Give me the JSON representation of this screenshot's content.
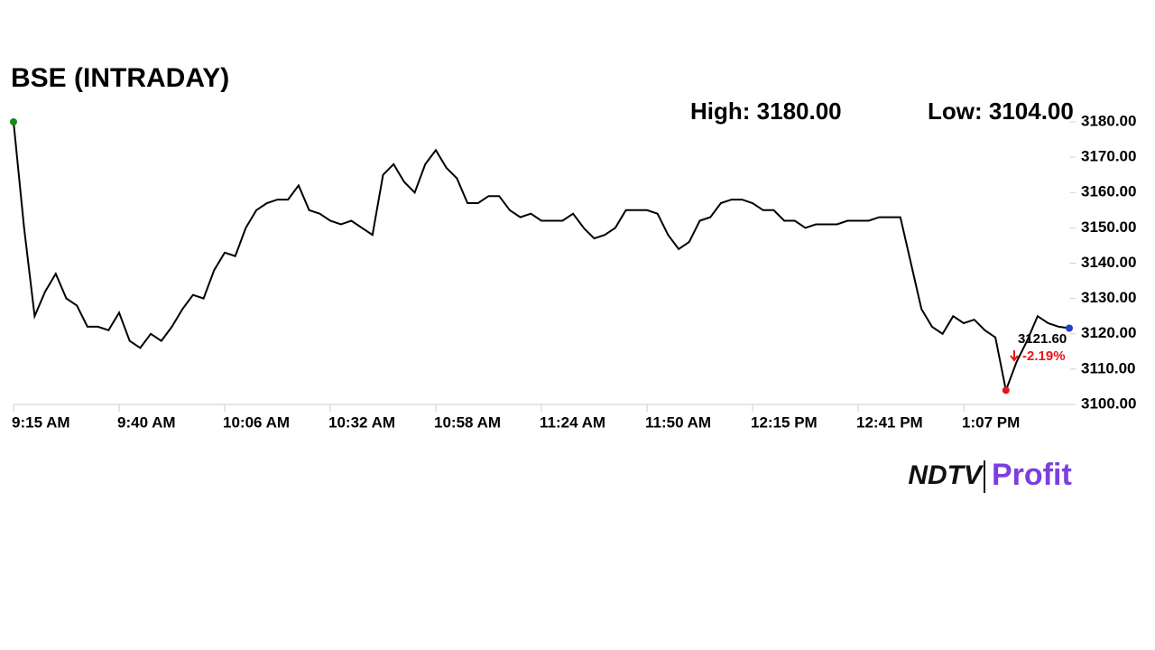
{
  "chart_data": {
    "type": "line",
    "title": "BSE (INTRADAY)",
    "high_label": "High: 3180.00",
    "low_label": "Low: 3104.00",
    "last_label": "3121.60",
    "change_label": "-2.19%",
    "categories": [
      "9:15 AM",
      null,
      null,
      null,
      null,
      null,
      null,
      null,
      null,
      null,
      "9:40 AM",
      null,
      null,
      null,
      null,
      null,
      null,
      null,
      null,
      null,
      "10:06 AM",
      null,
      null,
      null,
      null,
      null,
      null,
      null,
      null,
      null,
      "10:32 AM",
      null,
      null,
      null,
      null,
      null,
      null,
      null,
      null,
      null,
      "10:58 AM",
      null,
      null,
      null,
      null,
      null,
      null,
      null,
      null,
      null,
      "11:24 AM",
      null,
      null,
      null,
      null,
      null,
      null,
      null,
      null,
      null,
      "11:50 AM",
      null,
      null,
      null,
      null,
      null,
      null,
      null,
      null,
      null,
      "12:15 PM",
      null,
      null,
      null,
      null,
      null,
      null,
      null,
      null,
      null,
      "12:41 PM",
      null,
      null,
      null,
      null,
      null,
      null,
      null,
      null,
      null,
      "1:07 PM",
      null,
      null,
      null,
      null,
      null,
      null,
      null,
      null,
      null,
      null
    ],
    "values": [
      3180,
      3150,
      3125,
      3132,
      3137,
      3130,
      3128,
      3122,
      3122,
      3121,
      3126,
      3118,
      3116,
      3120,
      3118,
      3122,
      3127,
      3131,
      3130,
      3138,
      3143,
      3142,
      3150,
      3155,
      3157,
      3158,
      3158,
      3162,
      3155,
      3154,
      3152,
      3151,
      3152,
      3150,
      3148,
      3165,
      3168,
      3163,
      3160,
      3168,
      3172,
      3167,
      3164,
      3157,
      3157,
      3159,
      3159,
      3155,
      3153,
      3154,
      3152,
      3152,
      3152,
      3154,
      3150,
      3147,
      3148,
      3150,
      3155,
      3155,
      3155,
      3154,
      3148,
      3144,
      3146,
      3152,
      3153,
      3157,
      3158,
      3158,
      3157,
      3155,
      3155,
      3152,
      3152,
      3150,
      3151,
      3151,
      3151,
      3152,
      3152,
      3152,
      3153,
      3153,
      3153,
      3140,
      3127,
      3122,
      3120,
      3125,
      3123,
      3124,
      3121,
      3119,
      3104,
      3112,
      3118,
      3125,
      3123,
      3122,
      3121.6
    ],
    "color": "#000000",
    "start_color": "#1a8a1a",
    "low_color": "#e8141c",
    "end_color": "#1f3fcc",
    "change_color": "#e8141c",
    "ylim": [
      3100,
      3180
    ],
    "yticks": [
      {
        "value": 3100,
        "label": "3100.00"
      },
      {
        "value": 3110,
        "label": "3110.00"
      },
      {
        "value": 3120,
        "label": "3120.00"
      },
      {
        "value": 3130,
        "label": "3130.00"
      },
      {
        "value": 3140,
        "label": "3140.00"
      },
      {
        "value": 3150,
        "label": "3150.00"
      },
      {
        "value": 3160,
        "label": "3160.00"
      },
      {
        "value": 3170,
        "label": "3170.00"
      },
      {
        "value": 3180,
        "label": "3180.00"
      }
    ],
    "grid": false
  },
  "logo": {
    "brand": "NDTV",
    "product": "Profit"
  }
}
